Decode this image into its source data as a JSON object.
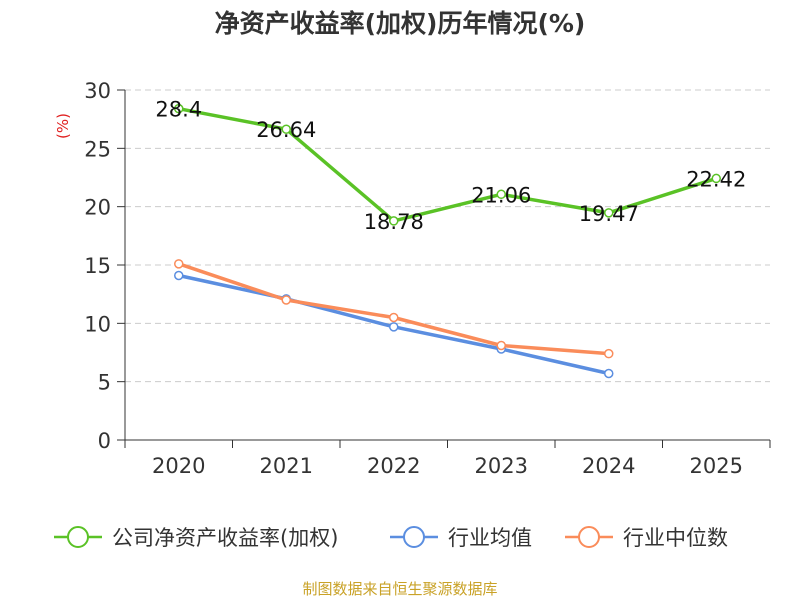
{
  "chart_data": {
    "type": "line",
    "title": "净资产收益率(加权)历年情况(%)",
    "ylabel": "(%)",
    "xlabel": "",
    "categories": [
      "2020",
      "2021",
      "2022",
      "2023",
      "2024",
      "2025"
    ],
    "ylim": [
      0,
      30
    ],
    "yticks": [
      0,
      5,
      10,
      15,
      20,
      25,
      30
    ],
    "grid": true,
    "legend_position": "bottom",
    "series": [
      {
        "name": "公司净资产收益率(加权)",
        "color": "#5ac226",
        "show_labels": true,
        "values": [
          28.4,
          26.64,
          18.78,
          21.06,
          19.47,
          22.42
        ]
      },
      {
        "name": "行业均值",
        "color": "#5b8ee0",
        "show_labels": false,
        "values": [
          14.1,
          12.1,
          9.7,
          7.8,
          5.7,
          null
        ]
      },
      {
        "name": "行业中位数",
        "color": "#fa8c5a",
        "show_labels": false,
        "values": [
          15.1,
          12.0,
          10.5,
          8.1,
          7.4,
          null
        ]
      }
    ],
    "data_labels": [
      "28.4",
      "26.64",
      "18.78",
      "21.06",
      "19.47",
      "22.42"
    ],
    "tick_labels": [
      "0",
      "5",
      "10",
      "15",
      "20",
      "25",
      "30"
    ]
  },
  "source_note": "制图数据来自恒生聚源数据库"
}
